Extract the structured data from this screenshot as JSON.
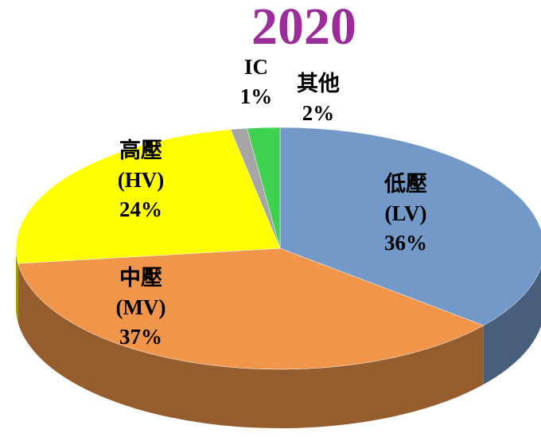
{
  "chart_data": {
    "type": "pie3d",
    "title": "2020",
    "categories": [
      "低壓",
      "中壓",
      "高壓",
      "IC",
      "其他"
    ],
    "codes": [
      "(LV)",
      "(MV)",
      "(HV)",
      null,
      null
    ],
    "values": [
      36,
      37,
      24,
      1,
      2
    ],
    "value_labels": [
      "36%",
      "37%",
      "24%",
      "1%",
      "2%"
    ],
    "colors": [
      "#7399c9",
      "#f0954a",
      "#ffff00",
      "#a6a6a6",
      "#3fd150"
    ]
  }
}
